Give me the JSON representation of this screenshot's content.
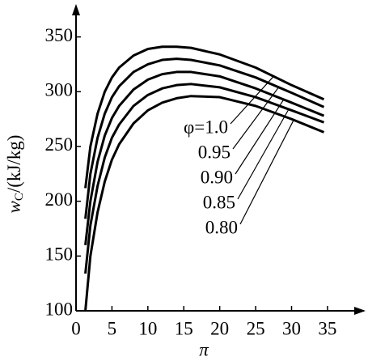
{
  "chart_data": {
    "type": "line",
    "xlabel": "π",
    "ylabel": [
      "w",
      "C",
      "/(kJ/kg)"
    ],
    "x": [
      1.3,
      2,
      3,
      4,
      5,
      6,
      8,
      10,
      12,
      14,
      16,
      20,
      25,
      30,
      34.5
    ],
    "series": [
      {
        "name": "φ=1.0",
        "color": "#000000",
        "values": [
          212,
          250,
          280,
          300,
          313,
          322,
          333,
          339,
          341,
          341,
          340,
          334,
          322,
          306,
          293
        ]
      },
      {
        "name": "0.95",
        "color": "#000000",
        "values": [
          184,
          225,
          258,
          280,
          295,
          305,
          318,
          325,
          329,
          330,
          329,
          324,
          313,
          299,
          286
        ]
      },
      {
        "name": "0.90",
        "color": "#000000",
        "values": [
          160,
          200,
          236,
          260,
          276,
          287,
          302,
          311,
          316,
          318,
          318,
          314,
          303,
          290,
          278
        ]
      },
      {
        "name": "0.85",
        "color": "#000000",
        "values": [
          134,
          178,
          214,
          240,
          258,
          270,
          287,
          297,
          303,
          306,
          307,
          304,
          295,
          283,
          272
        ]
      },
      {
        "name": "0.80",
        "color": "#000000",
        "values": [
          100,
          150,
          190,
          218,
          238,
          252,
          271,
          283,
          290,
          294,
          296,
          295,
          287,
          275,
          263
        ]
      }
    ],
    "xlim": [
      0,
      40.3
    ],
    "ylim": [
      100,
      380
    ],
    "xticks": [
      0,
      5,
      10,
      15,
      20,
      25,
      30,
      35
    ],
    "yticks": [
      100,
      150,
      200,
      250,
      300,
      350
    ],
    "grid": false
  }
}
